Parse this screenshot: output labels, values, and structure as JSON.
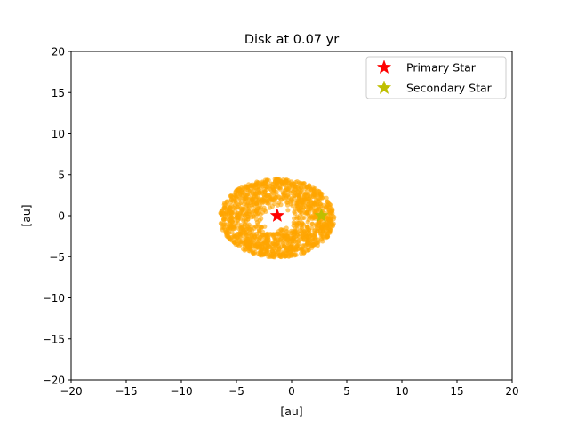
{
  "chart_data": {
    "type": "scatter",
    "title": "Disk at 0.07 yr",
    "xlabel": "[au]",
    "ylabel": "[au]",
    "xlim": [
      -20,
      20
    ],
    "ylim": [
      -20,
      20
    ],
    "xticks": [
      -20,
      -15,
      -10,
      -5,
      0,
      5,
      10,
      15,
      20
    ],
    "yticks": [
      -20,
      -15,
      -10,
      -5,
      0,
      5,
      10,
      15,
      20
    ],
    "xtick_labels": [
      "−20",
      "−15",
      "−10",
      "−5",
      "0",
      "5",
      "10",
      "15",
      "20"
    ],
    "ytick_labels": [
      "−20",
      "−15",
      "−10",
      "−5",
      "0",
      "5",
      "10",
      "15",
      "20"
    ],
    "grid": false,
    "legend_position": "top-right",
    "disk": {
      "color": "#ffa500",
      "center": [
        -1.3,
        -0.3
      ],
      "inner_radius": 1.3,
      "outer_radius_x": 5.2,
      "outer_radius_y": 4.8,
      "n_particles": 1400
    },
    "stars": [
      {
        "name": "Primary Star",
        "x": -1.3,
        "y": 0.0,
        "color": "#ff0000",
        "marker": "star"
      },
      {
        "name": "Secondary Star",
        "x": 2.7,
        "y": 0.0,
        "color": "#bfbf00",
        "marker": "star"
      }
    ]
  }
}
